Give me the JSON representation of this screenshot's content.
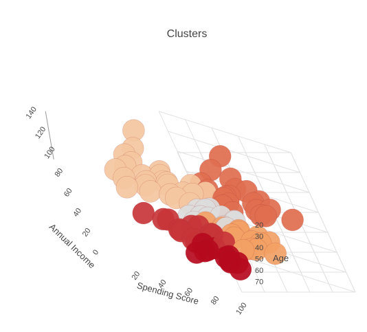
{
  "chart_data": {
    "type": "scatter",
    "title": "Clusters",
    "axes": {
      "x": {
        "label": "Annual Income",
        "range": [
          0,
          140
        ],
        "ticks": [
          "0",
          "20",
          "40",
          "60",
          "80",
          "100",
          "120",
          "140"
        ]
      },
      "y": {
        "label": "Spending Score",
        "range": [
          0,
          100
        ],
        "ticks": [
          "20",
          "40",
          "60",
          "80",
          "100"
        ]
      },
      "z": {
        "label": "Age",
        "range": [
          20,
          70
        ],
        "ticks": [
          "20",
          "30",
          "40",
          "50",
          "60",
          "70"
        ]
      }
    },
    "grid": true,
    "series": [
      {
        "color": "#f4c7a0",
        "points": [
          [
            125,
            10,
            50
          ],
          [
            108,
            12,
            45
          ],
          [
            100,
            8,
            42
          ],
          [
            95,
            15,
            40
          ],
          [
            90,
            12,
            38
          ],
          [
            88,
            20,
            48
          ],
          [
            85,
            8,
            35
          ],
          [
            82,
            15,
            42
          ],
          [
            80,
            25,
            45
          ],
          [
            78,
            5,
            55
          ],
          [
            78,
            12,
            35
          ],
          [
            76,
            18,
            50
          ],
          [
            75,
            22,
            58
          ],
          [
            73,
            8,
            46
          ],
          [
            72,
            14,
            52
          ],
          [
            70,
            28,
            60
          ],
          [
            70,
            10,
            44
          ],
          [
            68,
            20,
            40
          ],
          [
            66,
            5,
            38
          ],
          [
            65,
            16,
            56
          ],
          [
            63,
            24,
            48
          ],
          [
            62,
            12,
            62
          ],
          [
            60,
            30,
            50
          ],
          [
            60,
            8,
            54
          ]
        ]
      },
      {
        "color": "#e06e4f",
        "points": [
          [
            128,
            80,
            48
          ],
          [
            115,
            82,
            40
          ],
          [
            108,
            86,
            45
          ],
          [
            100,
            78,
            35
          ],
          [
            100,
            92,
            42
          ],
          [
            95,
            85,
            50
          ],
          [
            92,
            75,
            38
          ],
          [
            90,
            90,
            36
          ],
          [
            88,
            80,
            44
          ],
          [
            86,
            88,
            52
          ],
          [
            84,
            72,
            46
          ],
          [
            82,
            84,
            40
          ],
          [
            80,
            78,
            54
          ],
          [
            78,
            90,
            48
          ],
          [
            76,
            74,
            42
          ],
          [
            75,
            82,
            58
          ],
          [
            72,
            88,
            50
          ],
          [
            70,
            76,
            44
          ],
          [
            70,
            94,
            60
          ],
          [
            68,
            80,
            56
          ]
        ]
      },
      {
        "color": "#dcdcdc",
        "points": [
          [
            65,
            55,
            45
          ],
          [
            62,
            50,
            42
          ],
          [
            60,
            45,
            48
          ],
          [
            58,
            60,
            40
          ],
          [
            56,
            52,
            50
          ],
          [
            55,
            48,
            38
          ],
          [
            54,
            58,
            52
          ],
          [
            52,
            42,
            46
          ],
          [
            50,
            62,
            44
          ],
          [
            50,
            50,
            56
          ],
          [
            48,
            46,
            40
          ],
          [
            46,
            56,
            48
          ]
        ]
      },
      {
        "color": "#c8353a",
        "points": [
          [
            40,
            5,
            40
          ],
          [
            36,
            10,
            45
          ],
          [
            33,
            4,
            50
          ],
          [
            30,
            12,
            55
          ],
          [
            28,
            8,
            60
          ],
          [
            26,
            15,
            48
          ],
          [
            24,
            6,
            52
          ],
          [
            22,
            12,
            62
          ],
          [
            20,
            18,
            58
          ],
          [
            18,
            5,
            66
          ],
          [
            16,
            10,
            54
          ],
          [
            15,
            16,
            64
          ]
        ]
      },
      {
        "color": "#f3a165",
        "points": [
          [
            45,
            40,
            48
          ],
          [
            42,
            45,
            52
          ],
          [
            40,
            50,
            56
          ],
          [
            38,
            42,
            60
          ],
          [
            36,
            55,
            50
          ],
          [
            34,
            48,
            64
          ],
          [
            32,
            38,
            58
          ],
          [
            30,
            52,
            66
          ],
          [
            28,
            45,
            62
          ],
          [
            26,
            58,
            54
          ],
          [
            24,
            40,
            68
          ],
          [
            22,
            50,
            60
          ],
          [
            20,
            55,
            65
          ],
          [
            18,
            42,
            58
          ]
        ]
      },
      {
        "color": "#b60a1e",
        "points": [
          [
            42,
            80,
            20
          ],
          [
            40,
            90,
            22
          ],
          [
            38,
            75,
            25
          ],
          [
            36,
            85,
            21
          ],
          [
            34,
            95,
            24
          ],
          [
            32,
            78,
            23
          ],
          [
            30,
            88,
            26
          ],
          [
            28,
            72,
            22
          ],
          [
            26,
            92,
            28
          ],
          [
            24,
            82,
            30
          ],
          [
            22,
            98,
            25
          ],
          [
            20,
            76,
            33
          ]
        ]
      }
    ]
  }
}
